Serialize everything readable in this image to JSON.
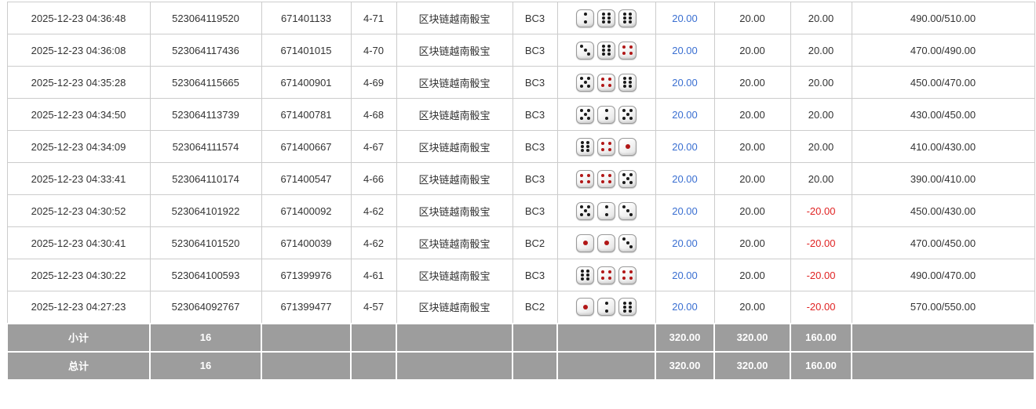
{
  "colors": {
    "bet_link": "#3a6fd1",
    "negative": "#e02222",
    "summary_bg": "#9d9d9d",
    "border_color": "#cccccc",
    "text_color": "#333333",
    "pip_black": "#1a1a1a",
    "pip_red": "#b11616"
  },
  "table": {
    "columns": [
      "time",
      "order_no",
      "round_no",
      "period",
      "game",
      "table_code",
      "result_dice",
      "bet_amount",
      "valid_bet",
      "win_loss",
      "balance"
    ],
    "rows": [
      {
        "time": "2025-12-23 04:36:48",
        "order_no": "523064119520",
        "round_no": "671401133",
        "period": "4-71",
        "game": "区块链越南骰宝",
        "table_code": "BC3",
        "dice": [
          2,
          6,
          6
        ],
        "bet": "20.00",
        "valid": "20.00",
        "win_loss": "20.00",
        "balance": "490.00/510.00"
      },
      {
        "time": "2025-12-23 04:36:08",
        "order_no": "523064117436",
        "round_no": "671401015",
        "period": "4-70",
        "game": "区块链越南骰宝",
        "table_code": "BC3",
        "dice": [
          3,
          6,
          4
        ],
        "bet": "20.00",
        "valid": "20.00",
        "win_loss": "20.00",
        "balance": "470.00/490.00"
      },
      {
        "time": "2025-12-23 04:35:28",
        "order_no": "523064115665",
        "round_no": "671400901",
        "period": "4-69",
        "game": "区块链越南骰宝",
        "table_code": "BC3",
        "dice": [
          5,
          4,
          6
        ],
        "bet": "20.00",
        "valid": "20.00",
        "win_loss": "20.00",
        "balance": "450.00/470.00"
      },
      {
        "time": "2025-12-23 04:34:50",
        "order_no": "523064113739",
        "round_no": "671400781",
        "period": "4-68",
        "game": "区块链越南骰宝",
        "table_code": "BC3",
        "dice": [
          5,
          2,
          5
        ],
        "bet": "20.00",
        "valid": "20.00",
        "win_loss": "20.00",
        "balance": "430.00/450.00"
      },
      {
        "time": "2025-12-23 04:34:09",
        "order_no": "523064111574",
        "round_no": "671400667",
        "period": "4-67",
        "game": "区块链越南骰宝",
        "table_code": "BC3",
        "dice": [
          6,
          4,
          1
        ],
        "bet": "20.00",
        "valid": "20.00",
        "win_loss": "20.00",
        "balance": "410.00/430.00"
      },
      {
        "time": "2025-12-23 04:33:41",
        "order_no": "523064110174",
        "round_no": "671400547",
        "period": "4-66",
        "game": "区块链越南骰宝",
        "table_code": "BC3",
        "dice": [
          4,
          4,
          5
        ],
        "bet": "20.00",
        "valid": "20.00",
        "win_loss": "20.00",
        "balance": "390.00/410.00"
      },
      {
        "time": "2025-12-23 04:30:52",
        "order_no": "523064101922",
        "round_no": "671400092",
        "period": "4-62",
        "game": "区块链越南骰宝",
        "table_code": "BC3",
        "dice": [
          5,
          2,
          3
        ],
        "bet": "20.00",
        "valid": "20.00",
        "win_loss": "-20.00",
        "balance": "450.00/430.00"
      },
      {
        "time": "2025-12-23 04:30:41",
        "order_no": "523064101520",
        "round_no": "671400039",
        "period": "4-62",
        "game": "区块链越南骰宝",
        "table_code": "BC2",
        "dice": [
          1,
          1,
          3
        ],
        "bet": "20.00",
        "valid": "20.00",
        "win_loss": "-20.00",
        "balance": "470.00/450.00"
      },
      {
        "time": "2025-12-23 04:30:22",
        "order_no": "523064100593",
        "round_no": "671399976",
        "period": "4-61",
        "game": "区块链越南骰宝",
        "table_code": "BC3",
        "dice": [
          6,
          4,
          4
        ],
        "bet": "20.00",
        "valid": "20.00",
        "win_loss": "-20.00",
        "balance": "490.00/470.00"
      },
      {
        "time": "2025-12-23 04:27:23",
        "order_no": "523064092767",
        "round_no": "671399477",
        "period": "4-57",
        "game": "区块链越南骰宝",
        "table_code": "BC2",
        "dice": [
          1,
          2,
          6
        ],
        "bet": "20.00",
        "valid": "20.00",
        "win_loss": "-20.00",
        "balance": "570.00/550.00"
      }
    ],
    "subtotal": {
      "label": "小计",
      "count": "16",
      "bet": "320.00",
      "valid": "320.00",
      "win_loss": "160.00"
    },
    "total": {
      "label": "总计",
      "count": "16",
      "bet": "320.00",
      "valid": "320.00",
      "win_loss": "160.00"
    }
  }
}
